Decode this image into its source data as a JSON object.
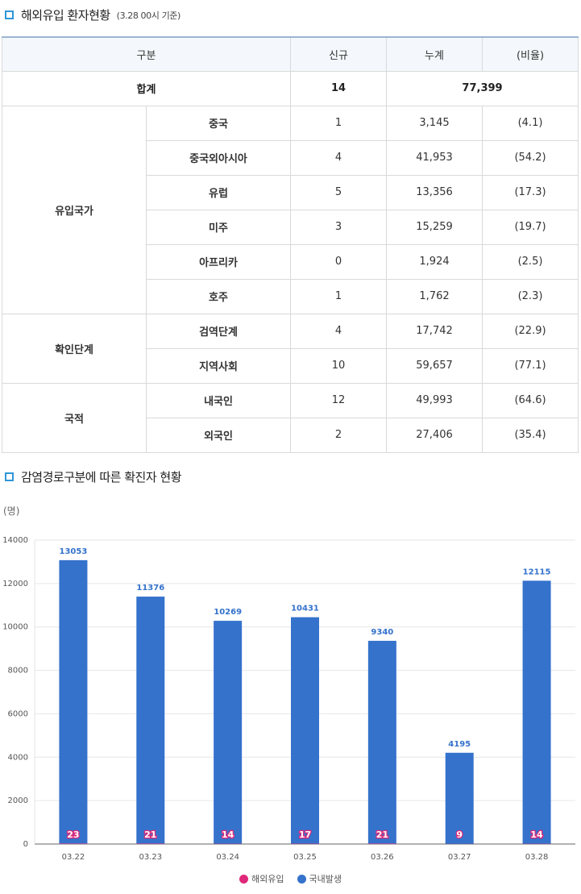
{
  "section1": {
    "title": "해외유입 환자현황",
    "subtitle": "(3.28 00시 기준)"
  },
  "table": {
    "headers": [
      "구분",
      "신규",
      "누계",
      "(비율)"
    ],
    "total": {
      "label": "합계",
      "new": "14",
      "cumulative": "77,399"
    },
    "groups": [
      {
        "label": "유입국가",
        "rows": [
          {
            "name": "중국",
            "new": "1",
            "cumulative": "3,145",
            "ratio": "(4.1)"
          },
          {
            "name": "중국외아시아",
            "new": "4",
            "cumulative": "41,953",
            "ratio": "(54.2)"
          },
          {
            "name": "유럽",
            "new": "5",
            "cumulative": "13,356",
            "ratio": "(17.3)"
          },
          {
            "name": "미주",
            "new": "3",
            "cumulative": "15,259",
            "ratio": "(19.7)"
          },
          {
            "name": "아프리카",
            "new": "0",
            "cumulative": "1,924",
            "ratio": "(2.5)"
          },
          {
            "name": "호주",
            "new": "1",
            "cumulative": "1,762",
            "ratio": "(2.3)"
          }
        ]
      },
      {
        "label": "확인단계",
        "rows": [
          {
            "name": "검역단계",
            "new": "4",
            "cumulative": "17,742",
            "ratio": "(22.9)"
          },
          {
            "name": "지역사회",
            "new": "10",
            "cumulative": "59,657",
            "ratio": "(77.1)"
          }
        ]
      },
      {
        "label": "국적",
        "rows": [
          {
            "name": "내국인",
            "new": "12",
            "cumulative": "49,993",
            "ratio": "(64.6)"
          },
          {
            "name": "외국인",
            "new": "2",
            "cumulative": "27,406",
            "ratio": "(35.4)"
          }
        ]
      }
    ]
  },
  "section2": {
    "title": "감염경로구분에 따른 확진자 현황"
  },
  "colors": {
    "domestic": "#3472cc",
    "overseas": "#e0287a",
    "accent": "#2f97d8"
  },
  "chart_data": {
    "type": "bar",
    "unit_label": "(명)",
    "categories": [
      "03.22",
      "03.23",
      "03.24",
      "03.25",
      "03.26",
      "03.27",
      "03.28"
    ],
    "series": [
      {
        "name": "해외유입",
        "values": [
          23,
          21,
          14,
          17,
          21,
          9,
          14
        ]
      },
      {
        "name": "국내발생",
        "values": [
          13053,
          11376,
          10269,
          10431,
          9340,
          4195,
          12115
        ]
      }
    ],
    "ylim": [
      0,
      14000
    ],
    "yticks": [
      0,
      2000,
      4000,
      6000,
      8000,
      10000,
      12000,
      14000
    ],
    "grid": true,
    "legend_position": "bottom-center"
  }
}
